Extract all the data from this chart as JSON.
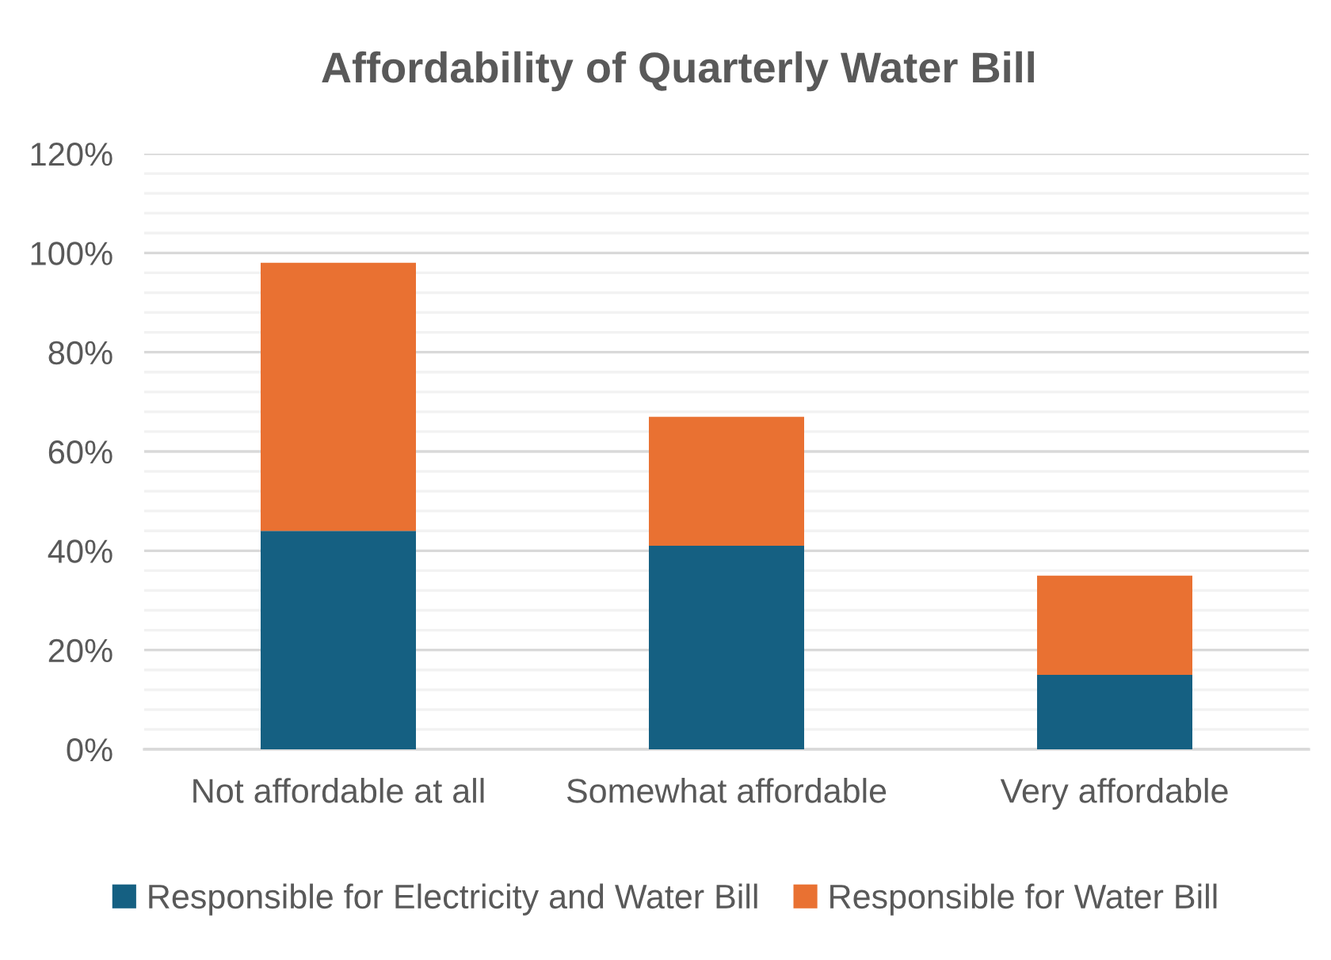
{
  "chart_data": {
    "type": "bar",
    "title": "Affordability of Quarterly Water Bill",
    "categories": [
      "Not affordable at all",
      "Somewhat affordable",
      "Very affordable"
    ],
    "series": [
      {
        "name": "Responsible for Electricity and Water Bill",
        "color": "#156082",
        "values": [
          44,
          41,
          15
        ]
      },
      {
        "name": "Responsible for Water Bill",
        "color": "#e97132",
        "values": [
          54,
          26,
          20
        ]
      }
    ],
    "stacked": true,
    "ylim": [
      0,
      120
    ],
    "yticks": [
      {
        "value": 0,
        "label": "0%"
      },
      {
        "value": 4,
        "label": null
      },
      {
        "value": 8,
        "label": null
      },
      {
        "value": 12,
        "label": null
      },
      {
        "value": 16,
        "label": null
      },
      {
        "value": 20,
        "label": "20%"
      },
      {
        "value": 24,
        "label": null
      },
      {
        "value": 28,
        "label": null
      },
      {
        "value": 32,
        "label": null
      },
      {
        "value": 36,
        "label": null
      },
      {
        "value": 40,
        "label": "40%"
      },
      {
        "value": 44,
        "label": null
      },
      {
        "value": 48,
        "label": null
      },
      {
        "value": 52,
        "label": null
      },
      {
        "value": 56,
        "label": null
      },
      {
        "value": 60,
        "label": "60%"
      },
      {
        "value": 64,
        "label": null
      },
      {
        "value": 68,
        "label": null
      },
      {
        "value": 72,
        "label": null
      },
      {
        "value": 76,
        "label": null
      },
      {
        "value": 80,
        "label": "80%"
      },
      {
        "value": 84,
        "label": null
      },
      {
        "value": 88,
        "label": null
      },
      {
        "value": 92,
        "label": null
      },
      {
        "value": 96,
        "label": null
      },
      {
        "value": 100,
        "label": "100%"
      },
      {
        "value": 104,
        "label": null
      },
      {
        "value": 108,
        "label": null
      },
      {
        "value": 112,
        "label": null
      },
      {
        "value": 116,
        "label": null
      },
      {
        "value": 120,
        "label": "120%"
      }
    ],
    "grid": "y",
    "legend": "bottom"
  }
}
